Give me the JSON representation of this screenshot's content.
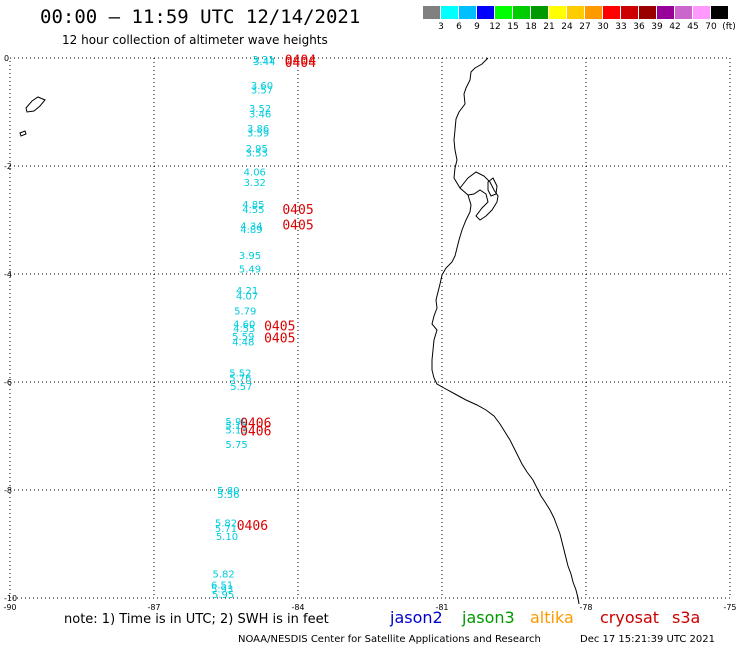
{
  "header": {
    "title": "00:00 – 11:59 UTC 12/14/2021",
    "subtitle": "12 hour collection of altimeter wave heights"
  },
  "legend": {
    "labels": [
      "3",
      "6",
      "9",
      "12",
      "15",
      "18",
      "21",
      "24",
      "27",
      "30",
      "33",
      "36",
      "39",
      "42",
      "45",
      "70",
      "(ft)"
    ],
    "colors": [
      "#808080",
      "#00ffff",
      "#00bfff",
      "#0000ff",
      "#00ff00",
      "#00cc00",
      "#009900",
      "#ffff00",
      "#ffcc00",
      "#ff9900",
      "#ff0000",
      "#cc0000",
      "#990000",
      "#990099",
      "#cc66cc",
      "#ff99ff",
      "#000000"
    ]
  },
  "map": {
    "lon_ticks": [
      "-90",
      "-87",
      "-84",
      "-81",
      "-78",
      "-75"
    ],
    "lat_ticks": [
      "0",
      "-2",
      "-4",
      "-6",
      "-8",
      "-10"
    ],
    "lon_range": [
      -90,
      -75
    ],
    "lat_range": [
      0,
      -10
    ],
    "grid": "dotted"
  },
  "observations": {
    "swh": [
      {
        "value": "3.31",
        "lat": -0.02,
        "lon": -84.72
      },
      {
        "value": "3.44",
        "lat": -0.06,
        "lon": -84.7
      },
      {
        "value": "3.60",
        "lat": -0.5,
        "lon": -84.75
      },
      {
        "value": "3.57",
        "lat": -0.58,
        "lon": -84.75
      },
      {
        "value": "3.52",
        "lat": -0.93,
        "lon": -84.79
      },
      {
        "value": "3.46",
        "lat": -1.03,
        "lon": -84.79
      },
      {
        "value": "3.86",
        "lat": -1.3,
        "lon": -84.83
      },
      {
        "value": "3.59",
        "lat": -1.38,
        "lon": -84.83
      },
      {
        "value": "2.95",
        "lat": -1.67,
        "lon": -84.86
      },
      {
        "value": "3.53",
        "lat": -1.75,
        "lon": -84.86
      },
      {
        "value": "4.06",
        "lat": -2.1,
        "lon": -84.9
      },
      {
        "value": "3.32",
        "lat": -2.3,
        "lon": -84.9
      },
      {
        "value": "4.85",
        "lat": -2.7,
        "lon": -84.93
      },
      {
        "value": "4.55",
        "lat": -2.8,
        "lon": -84.93
      },
      {
        "value": "4.34",
        "lat": -3.1,
        "lon": -84.97
      },
      {
        "value": "4.89",
        "lat": -3.17,
        "lon": -84.97
      },
      {
        "value": "3.95",
        "lat": -3.65,
        "lon": -85.0
      },
      {
        "value": "5.49",
        "lat": -3.9,
        "lon": -85.0
      },
      {
        "value": "4.21",
        "lat": -4.3,
        "lon": -85.06
      },
      {
        "value": "4.07",
        "lat": -4.4,
        "lon": -85.06
      },
      {
        "value": "5.79",
        "lat": -4.68,
        "lon": -85.1
      },
      {
        "value": "4.60",
        "lat": -4.92,
        "lon": -85.12
      },
      {
        "value": "4.55",
        "lat": -5.0,
        "lon": -85.12
      },
      {
        "value": "5.59",
        "lat": -5.15,
        "lon": -85.14
      },
      {
        "value": "4.48",
        "lat": -5.25,
        "lon": -85.14
      },
      {
        "value": "5.52",
        "lat": -5.82,
        "lon": -85.2
      },
      {
        "value": "5.76",
        "lat": -5.92,
        "lon": -85.2
      },
      {
        "value": "5.57",
        "lat": -6.07,
        "lon": -85.18
      },
      {
        "value": "5.90",
        "lat": -6.72,
        "lon": -85.28
      },
      {
        "value": "5.17",
        "lat": -6.8,
        "lon": -85.28
      },
      {
        "value": "5.13",
        "lat": -6.88,
        "lon": -85.28
      },
      {
        "value": "5.75",
        "lat": -7.15,
        "lon": -85.28
      },
      {
        "value": "5.80",
        "lat": -8.0,
        "lon": -85.45
      },
      {
        "value": "5.56",
        "lat": -8.07,
        "lon": -85.45
      },
      {
        "value": "5.82",
        "lat": -8.6,
        "lon": -85.5
      },
      {
        "value": "5.71",
        "lat": -8.7,
        "lon": -85.5
      },
      {
        "value": "5.10",
        "lat": -8.85,
        "lon": -85.48
      },
      {
        "value": "5.82",
        "lat": -9.55,
        "lon": -85.55
      },
      {
        "value": "6.51",
        "lat": -9.75,
        "lon": -85.58
      },
      {
        "value": "5.93",
        "lat": -9.82,
        "lon": -85.58
      },
      {
        "value": "5.95",
        "lat": -9.93,
        "lon": -85.56
      }
    ],
    "time_labels": [
      {
        "value": "0404",
        "lat": -0.03,
        "lon": -83.95
      },
      {
        "value": "0404",
        "lat": -0.07,
        "lon": -83.95
      },
      {
        "value": "0405",
        "lat": -2.8,
        "lon": -84.0
      },
      {
        "value": "0405",
        "lat": -3.08,
        "lon": -84.0
      },
      {
        "value": "0405",
        "lat": -4.95,
        "lon": -84.38
      },
      {
        "value": "0405",
        "lat": -5.18,
        "lon": -84.38
      },
      {
        "value": "0406",
        "lat": -6.75,
        "lon": -84.88
      },
      {
        "value": "0406",
        "lat": -6.9,
        "lon": -84.88
      },
      {
        "value": "0406",
        "lat": -8.65,
        "lon": -84.95
      }
    ]
  },
  "footer": {
    "note": "note: 1) Time is in UTC; 2) SWH is in feet",
    "satellites": [
      {
        "name": "jason2",
        "color": "#0000cc"
      },
      {
        "name": "jason3",
        "color": "#009900"
      },
      {
        "name": "altika",
        "color": "#ff9900"
      },
      {
        "name": "cryosat",
        "color": "#cc0000"
      },
      {
        "name": "s3a",
        "color": "#cc0000"
      }
    ],
    "credit": "NOAA/NESDIS Center for Satellite Applications and Research",
    "generated": "Dec 17 15:21:39 UTC 2021"
  },
  "colors": {
    "swh_text": "#00ccdd",
    "time_text": "#dd0000",
    "coast": "#000000",
    "grid": "#000000"
  }
}
